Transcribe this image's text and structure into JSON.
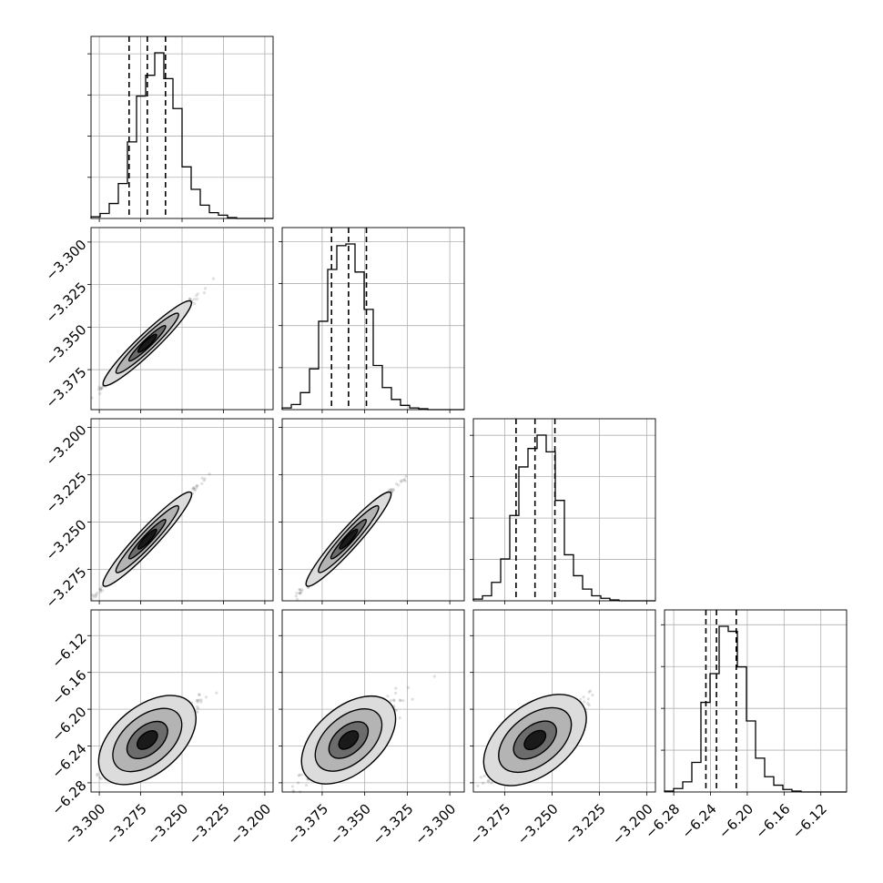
{
  "chart_data": {
    "type": "corner",
    "title": "",
    "params": [
      {
        "ticks": [
          -3.3,
          -3.275,
          -3.25,
          -3.225,
          -3.2
        ],
        "tick_labels": [
          "−3.300",
          "−3.275",
          "−3.250",
          "−3.225",
          "−3.200"
        ],
        "range": [
          -3.305,
          -3.195
        ],
        "quantiles": [
          -3.282,
          -3.271,
          -3.26
        ]
      },
      {
        "ticks": [
          -3.375,
          -3.35,
          -3.325,
          -3.3
        ],
        "tick_labels": [
          "−3.375",
          "−3.350",
          "−3.325",
          "−3.300"
        ],
        "range": [
          -3.3985,
          -3.2915
        ],
        "quantiles": [
          -3.3695,
          -3.3595,
          -3.349
        ]
      },
      {
        "ticks": [
          -3.275,
          -3.25,
          -3.225,
          -3.2
        ],
        "tick_labels": [
          "−3.275",
          "−3.250",
          "−3.225",
          "−3.200"
        ],
        "range": [
          -3.2915,
          -3.1955
        ],
        "quantiles": [
          -3.269,
          -3.259,
          -3.2485
        ]
      },
      {
        "ticks": [
          -6.28,
          -6.24,
          -6.2,
          -6.16,
          -6.12
        ],
        "tick_labels": [
          "−6.28",
          "−6.24",
          "−6.20",
          "−6.16",
          "−6.12"
        ],
        "range": [
          -6.29,
          -6.092
        ],
        "quantiles": [
          -6.245,
          -6.2335,
          -6.212
        ]
      }
    ],
    "histograms": [
      [
        2,
        6,
        18,
        42,
        92,
        147,
        172,
        199,
        168,
        132,
        62,
        35,
        16,
        7,
        4,
        1,
        0,
        0,
        0,
        0
      ],
      [
        2,
        6,
        20,
        48,
        104,
        165,
        193,
        195,
        162,
        118,
        52,
        26,
        12,
        5,
        2,
        1,
        0,
        0,
        0,
        0
      ],
      [
        2,
        6,
        22,
        50,
        102,
        160,
        182,
        198,
        178,
        120,
        55,
        30,
        14,
        6,
        3,
        1,
        0,
        0,
        0,
        0
      ],
      [
        1,
        4,
        12,
        35,
        106,
        140,
        196,
        190,
        148,
        84,
        40,
        18,
        8,
        3,
        1,
        0,
        0,
        0,
        0,
        0
      ]
    ],
    "grid": true
  }
}
